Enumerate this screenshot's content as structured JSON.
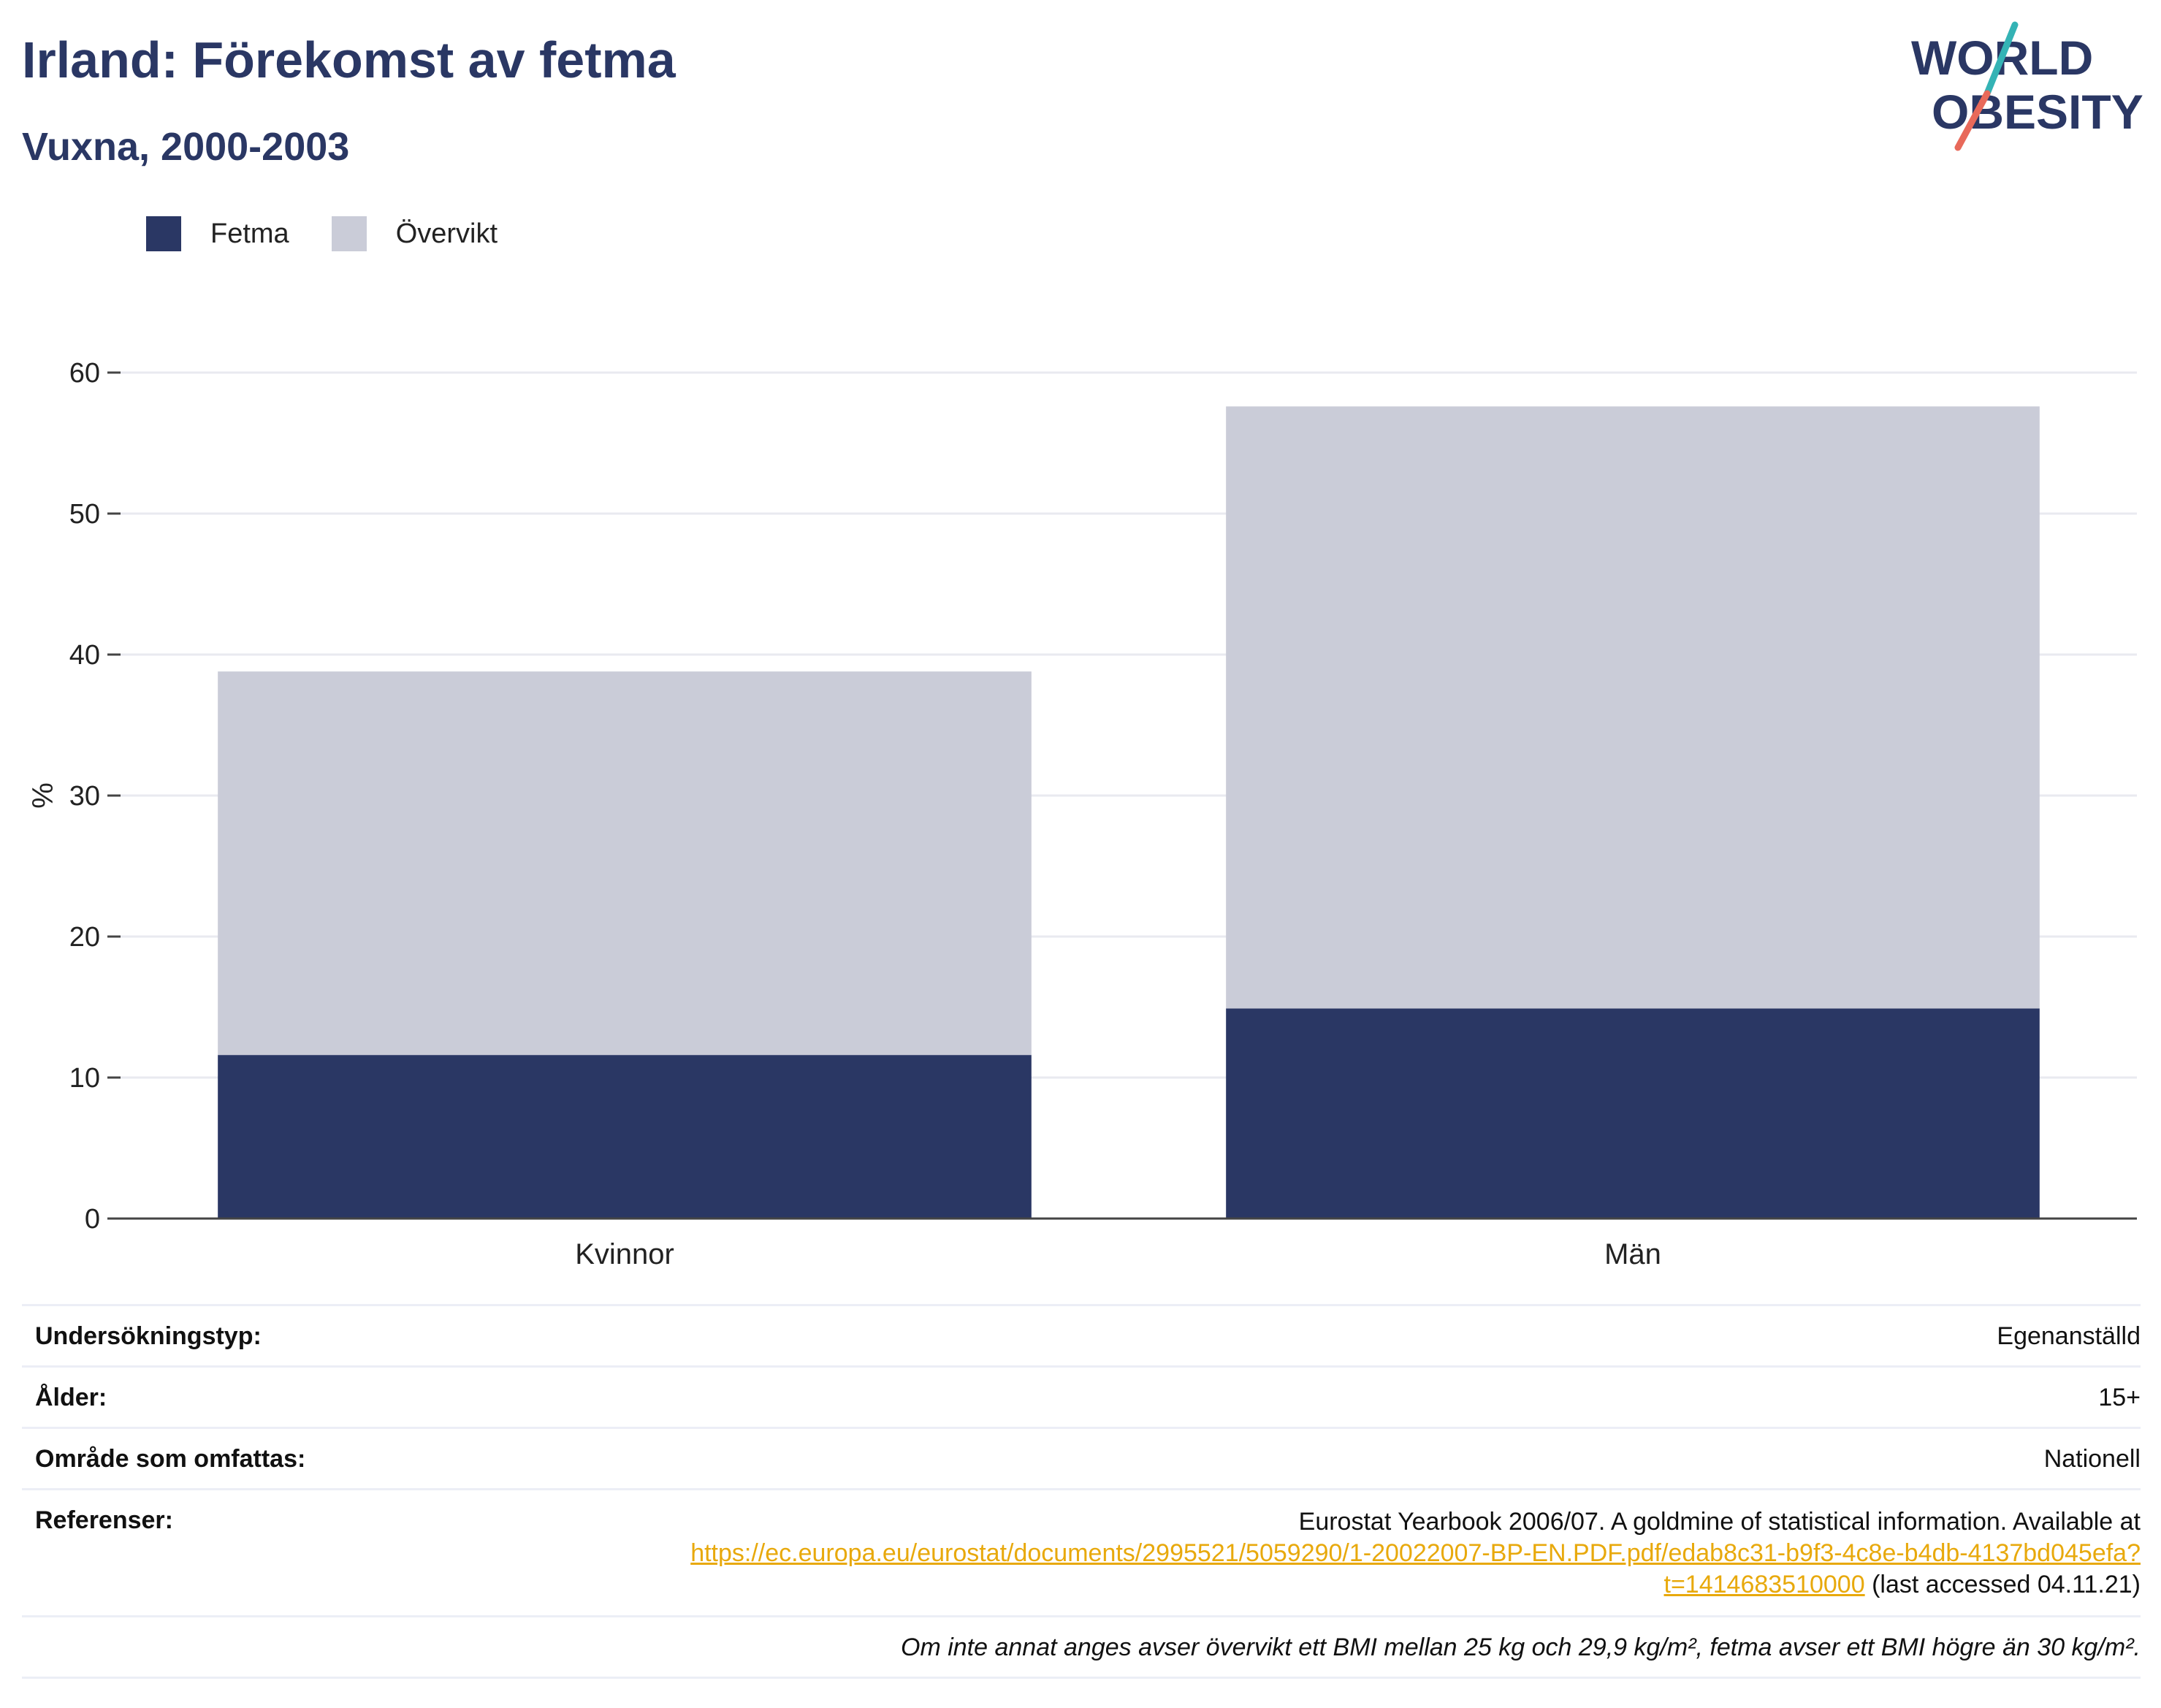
{
  "title": "Irland: Förekomst av fetma",
  "subtitle": "Vuxna, 2000-2003",
  "logo": {
    "line1": "WORLD",
    "line2": "OBESITY"
  },
  "colors": {
    "fetma": "#2a3764",
    "overvikt": "#caccd8",
    "accent_teal": "#34b3b5",
    "accent_red": "#e8695a",
    "title": "#2a3764",
    "link": "#e8a90c"
  },
  "chart_data": {
    "type": "bar",
    "stacked": true,
    "categories": [
      "Kvinnor",
      "Män"
    ],
    "series": [
      {
        "name": "Fetma",
        "values": [
          11.6,
          14.9
        ]
      },
      {
        "name": "Övervikt",
        "values": [
          27.2,
          42.7
        ]
      }
    ],
    "ylabel": "%",
    "xlabel": "",
    "ylim": [
      0,
      60
    ],
    "yticks": [
      0,
      10,
      20,
      30,
      40,
      50,
      60
    ],
    "grid": true,
    "legend_position": "top-left"
  },
  "meta": {
    "survey_type_label": "Undersökningstyp:",
    "survey_type_value": "Egenanställd",
    "age_label": "Ålder:",
    "age_value": "15+",
    "area_label": "Område som omfattas:",
    "area_value": "Nationell",
    "references_label": "Referenser:",
    "references_text": "Eurostat Yearbook 2006/07. A goldmine of statistical information. Available at",
    "references_link": "https://ec.europa.eu/eurostat/documents/2995521/5059290/1-20022007-BP-EN.PDF.pdf/edab8c31-b9f3-4c8e-b4db-4137bd045efa?t=1414683510000",
    "references_suffix": "(last accessed 04.11.21)",
    "footnote": "Om inte annat anges avser övervikt ett BMI mellan 25 kg och 29,9 kg/m², fetma avser ett BMI högre än 30 kg/m²."
  }
}
